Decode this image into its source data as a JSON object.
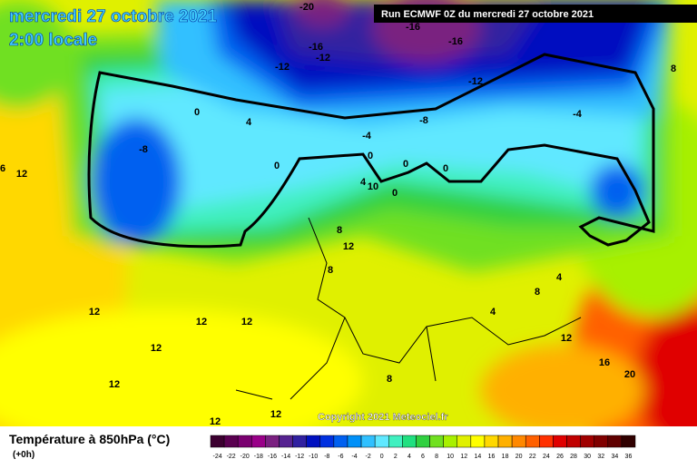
{
  "header": {
    "title": "mercredi 27 octobre 2021",
    "subtitle": "2:00 locale",
    "run_info": "Run ECMWF 0Z du mercredi 27 octobre 2021"
  },
  "map": {
    "labels": [
      "-20",
      "-16",
      "-16",
      "-16",
      "-12",
      "-12",
      "-12",
      "8",
      "0",
      "4",
      "-8",
      "-4",
      "-4",
      "-8",
      "0",
      "0",
      "0",
      "0",
      "4",
      "0",
      "10",
      "6",
      "12",
      "8",
      "12",
      "8",
      "4",
      "8",
      "4",
      "12",
      "12",
      "12",
      "12",
      "12",
      "16",
      "20",
      "12",
      "8",
      "12",
      "12"
    ],
    "copyright": "Copyright 2021 Meteociel.fr"
  },
  "footer": {
    "legend_title": "Température à 850hPa (°C)",
    "lead_time": "(+0h)"
  },
  "colorbar": {
    "labels": [
      "-24",
      "-22",
      "-20",
      "-18",
      "-16",
      "-14",
      "-12",
      "-10",
      "-8",
      "-6",
      "-4",
      "-2",
      "0",
      "2",
      "4",
      "6",
      "8",
      "10",
      "12",
      "14",
      "16",
      "18",
      "20",
      "22",
      "24",
      "26",
      "28",
      "30",
      "32",
      "34",
      "36"
    ],
    "colors": [
      "#3c0030",
      "#5a0050",
      "#7a0070",
      "#990088",
      "#7a2080",
      "#552290",
      "#3020a0",
      "#0010c0",
      "#0030e0",
      "#0060f0",
      "#0090f8",
      "#30c0ff",
      "#60e8ff",
      "#40f0c0",
      "#20e080",
      "#30d040",
      "#70e020",
      "#a8f000",
      "#e0f000",
      "#ffff00",
      "#ffd800",
      "#ffb000",
      "#ff8800",
      "#ff6000",
      "#ff3000",
      "#e00000",
      "#c00000",
      "#a00000",
      "#800000",
      "#600000",
      "#300000"
    ]
  }
}
